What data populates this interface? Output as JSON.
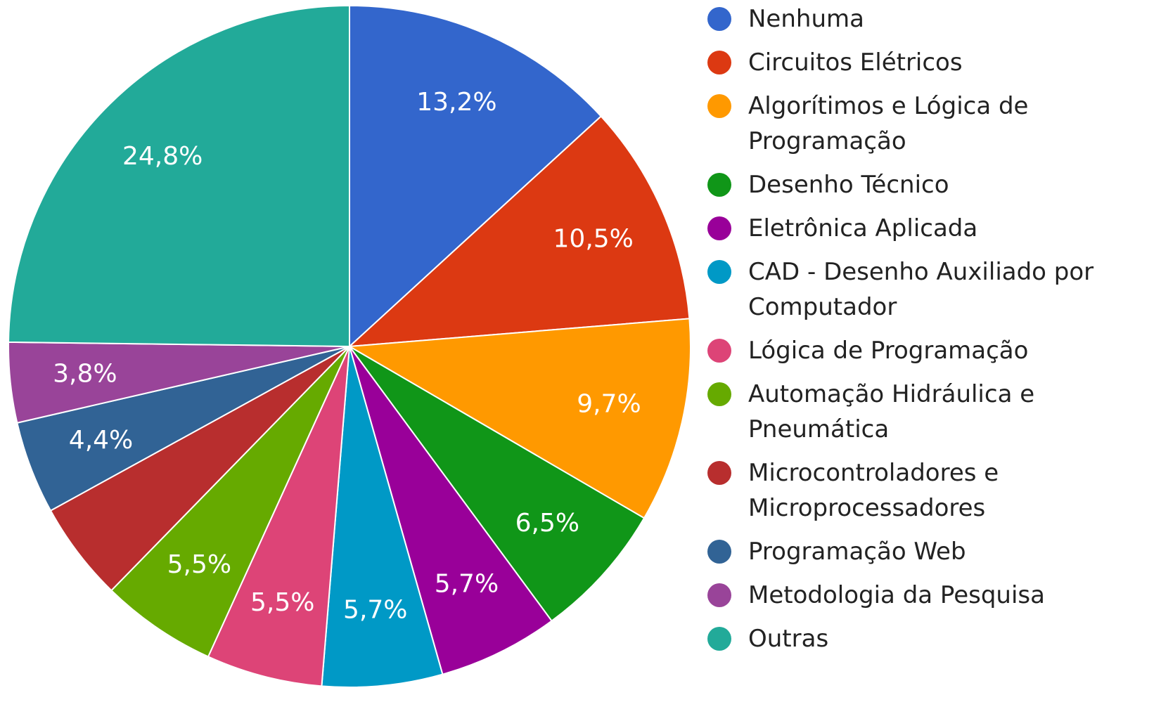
{
  "chart_data": {
    "type": "pie",
    "categories": [
      "Nenhuma",
      "Circuitos Elétricos",
      "Algorítimos e Lógica de Programação",
      "Desenho Técnico",
      "Eletrônica Aplicada",
      "CAD - Desenho Auxiliado por Computador",
      "Lógica de Programação",
      "Automação Hidráulica e Pneumática",
      "Microcontroladores e Microprocessadores",
      "Programação Web",
      "Metodologia da Pesquisa",
      "Outras"
    ],
    "values": [
      13.2,
      10.5,
      9.7,
      6.5,
      5.7,
      5.7,
      5.5,
      5.5,
      4.7,
      4.4,
      3.8,
      24.8
    ],
    "value_labels": [
      "13,2%",
      "10,5%",
      "9,7%",
      "6,5%",
      "5,7%",
      "5,7%",
      "5,5%",
      "5,5%",
      null,
      "4,4%",
      "3,8%",
      "24,8%"
    ],
    "colors": [
      "#3366cc",
      "#dc3912",
      "#ff9900",
      "#109618",
      "#990099",
      "#0099c6",
      "#dd4477",
      "#66aa00",
      "#b82e2e",
      "#316395",
      "#994499",
      "#22aa99"
    ],
    "legend": "right"
  }
}
